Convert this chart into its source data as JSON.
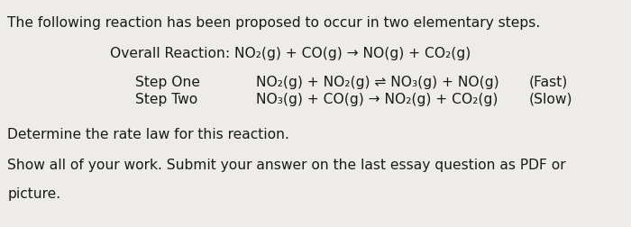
{
  "bg_color": "#eeece9",
  "text_color": "#1a1a1a",
  "line1": "The following reaction has been proposed to occur in two elementary steps.",
  "line2": "Overall Reaction: NO₂(g) + CO(g) → NO(g) + CO₂(g)",
  "step_one_label": "Step One",
  "step_one_eq": "NO₂(g) + NO₂(g) ⇌ NO₃(g) + NO(g)",
  "step_one_tag": "(Fast)",
  "step_two_label": "Step Two",
  "step_two_eq": "NO₃(g) + CO(g) → NO₂(g) + CO₂(g)",
  "step_two_tag": "(Slow)",
  "line5": "Determine the rate law for this reaction.",
  "line6": "Show all of your work. Submit your answer on the last essay question as PDF or",
  "line7": "picture.",
  "font_size": 11.2,
  "indent_overall": 0.175,
  "indent_step_label": 0.215,
  "indent_step_eq": 0.405,
  "indent_step_tag": 0.838
}
